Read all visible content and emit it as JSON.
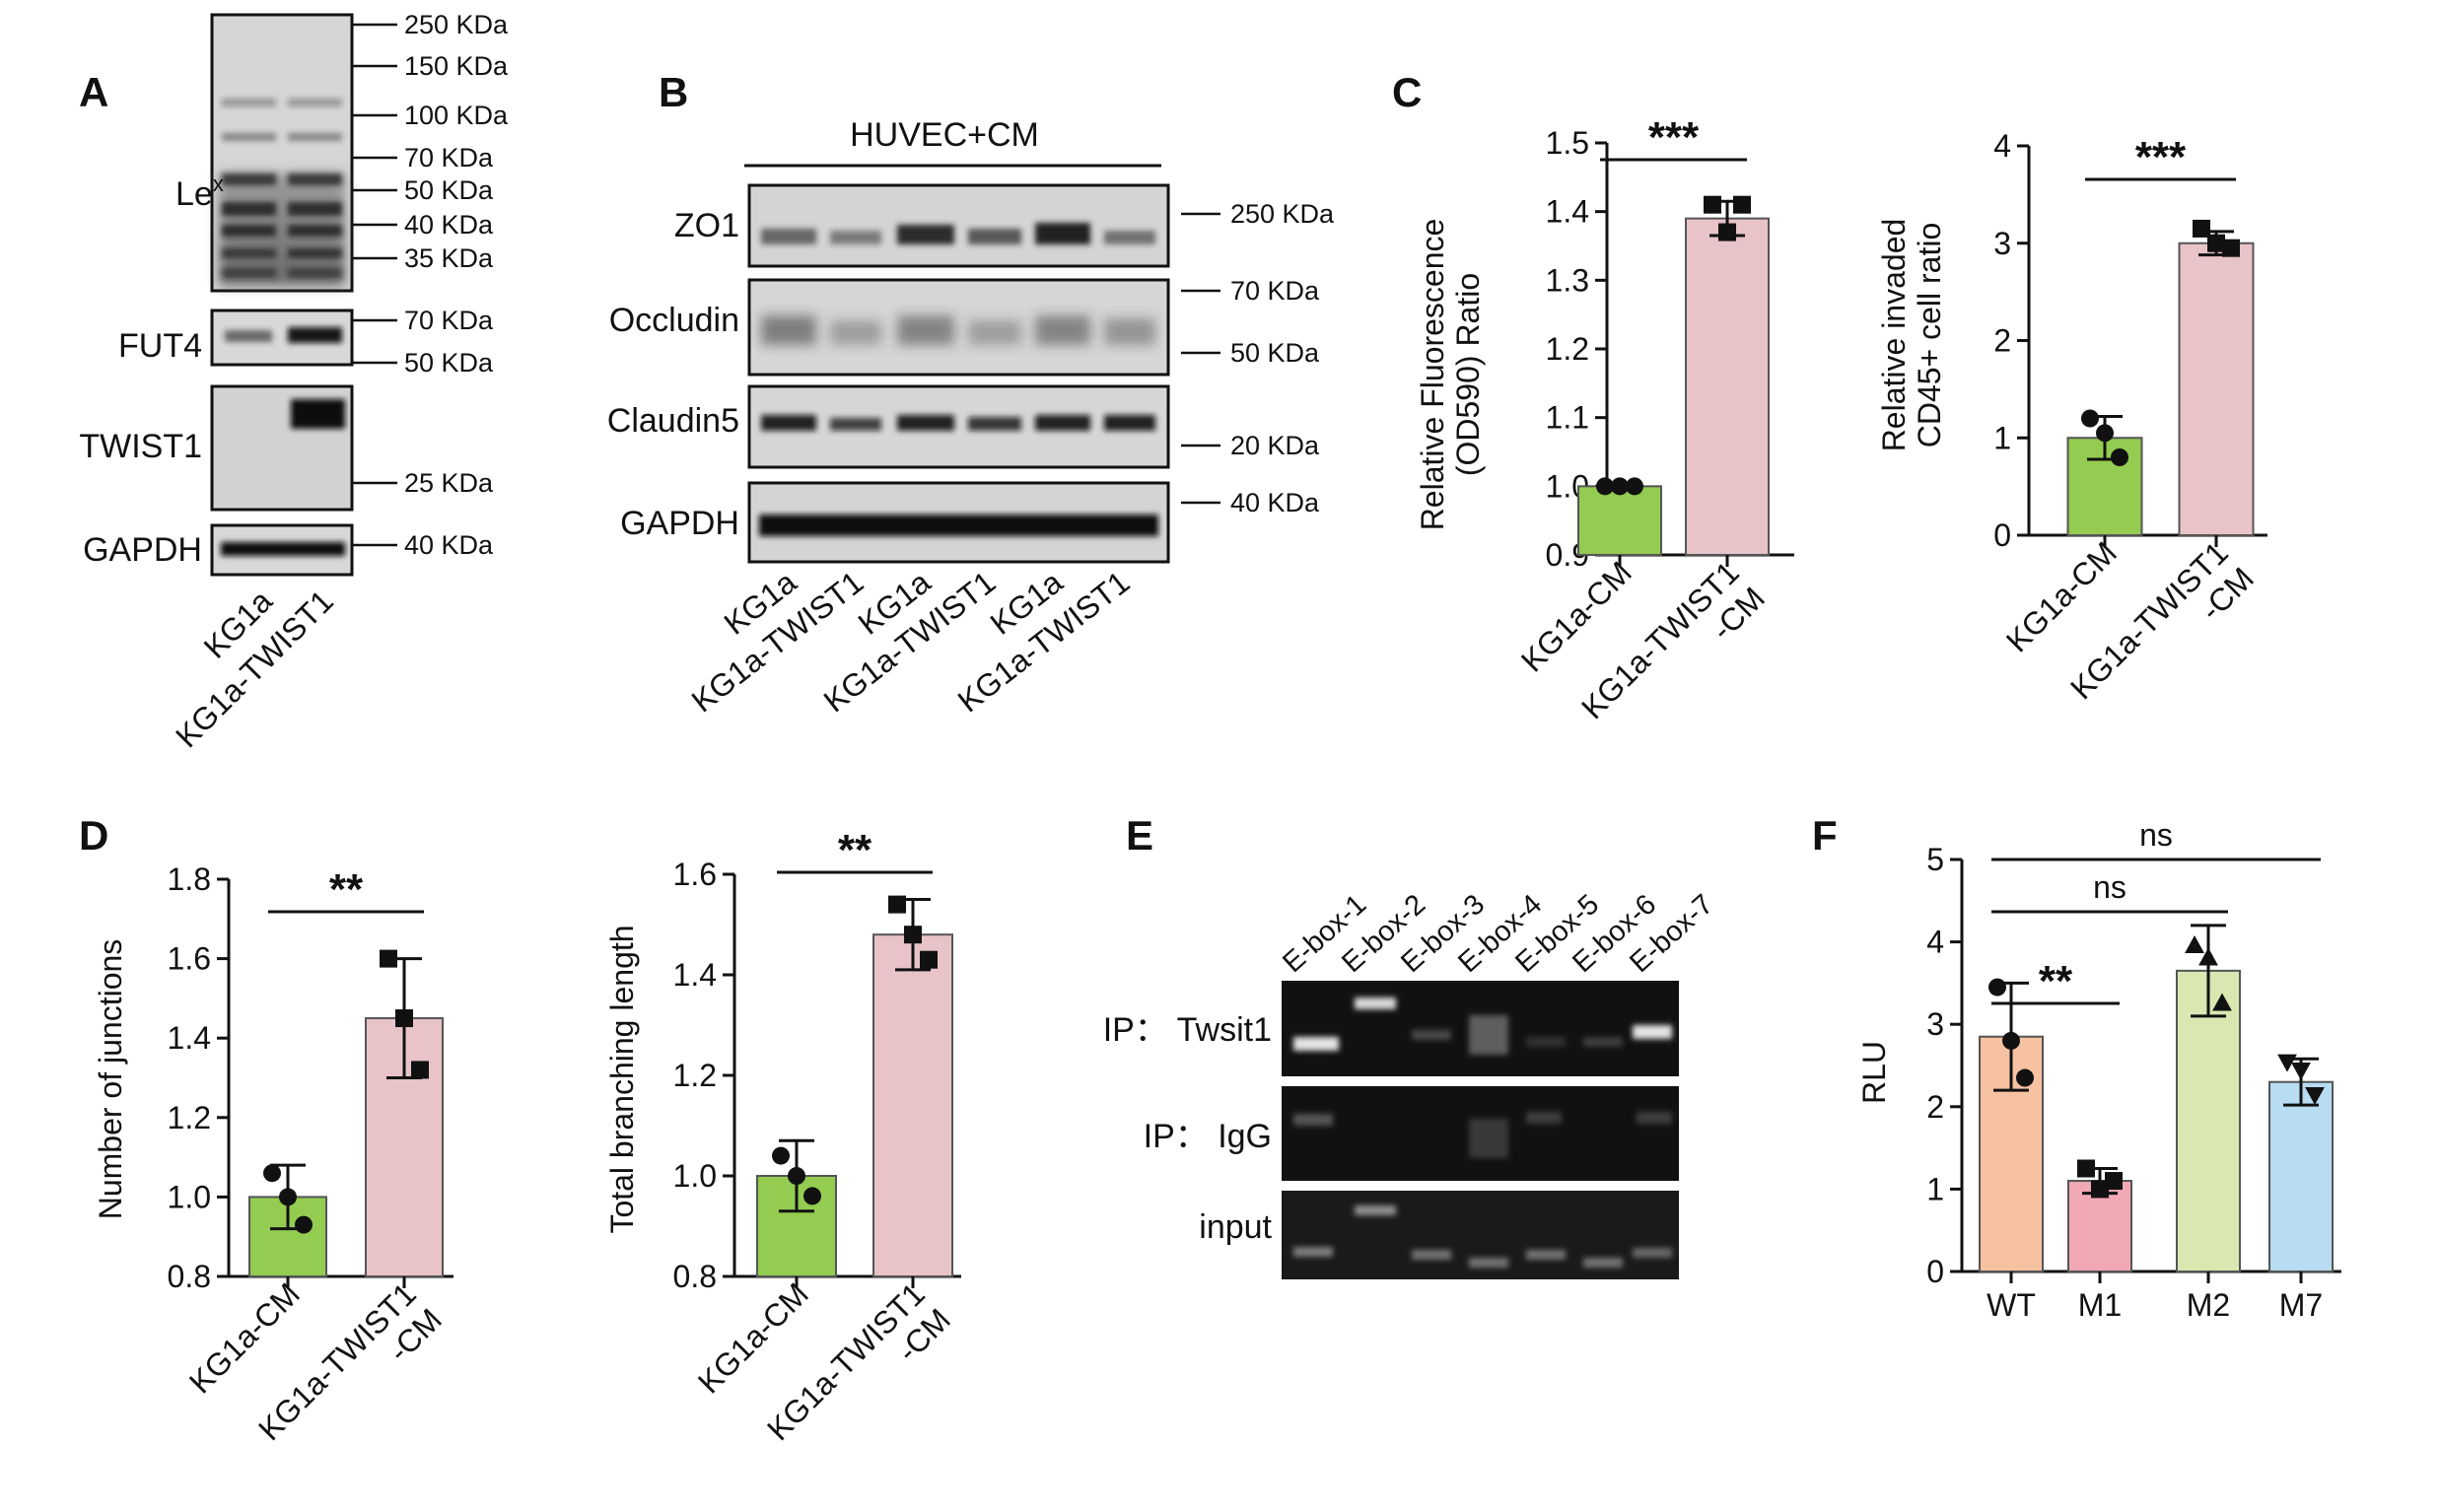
{
  "panels": {
    "A": {
      "letter": "A",
      "rows": [
        "Le<sup>x</sup>",
        "FUT4",
        "TWIST1",
        "GAPDH"
      ],
      "lex_main": "Le",
      "lex_sup": "x",
      "mw_markers": [
        "250 KDa",
        "150 KDa",
        "100 KDa",
        "70 KDa",
        "50 KDa",
        "40 KDa",
        "35 KDa",
        "70 KDa",
        "50 KDa",
        "25 KDa",
        "40 KDa"
      ],
      "lanes": [
        "KG1a",
        "KG1a-TWIST1"
      ]
    },
    "B": {
      "letter": "B",
      "header": "HUVEC+CM",
      "rows": [
        "ZO1",
        "Occludin",
        "Claudin5",
        "GAPDH"
      ],
      "mw_markers": [
        "250 KDa",
        "70 KDa",
        "50 KDa",
        "20 KDa",
        "40 KDa"
      ],
      "lanes": [
        "KG1a",
        "KG1a-TWIST1",
        "KG1a",
        "KG1a-TWIST1",
        "KG1a",
        "KG1a-TWIST1"
      ]
    },
    "C": {
      "letter": "C"
    },
    "D": {
      "letter": "D"
    },
    "E": {
      "letter": "E",
      "lanes": [
        "E-box-1",
        "E-box-2",
        "E-box-3",
        "E-box-4",
        "E-box-5",
        "E-box-6",
        "E-box-7"
      ],
      "rows": [
        "IP： Twsit1",
        "IP： IgG",
        "input"
      ]
    },
    "F": {
      "letter": "F"
    }
  },
  "colors": {
    "green": "#93cc50",
    "pink": "#e8c3c8",
    "peach": "#f6c2a1",
    "rose": "#f0a8b4",
    "lightgreen": "#d8e8b0",
    "lightblue": "#b8dcf2"
  },
  "chart_data": [
    {
      "id": "C1",
      "type": "bar",
      "ylabel": "Relative Fluorescence (OD590) Ratio",
      "ylabel_lines": [
        "Relative Fluorescence",
        "(OD590) Ratio"
      ],
      "ylim": [
        0.9,
        1.5
      ],
      "yticks": [
        "0.9",
        "1.0",
        "1.1",
        "1.2",
        "1.3",
        "1.4",
        "1.5"
      ],
      "categories": [
        "KG1a-CM",
        "KG1a-TWIST1 -CM"
      ],
      "category_lines": [
        [
          "KG1a-CM"
        ],
        [
          "KG1a-TWIST1",
          "-CM"
        ]
      ],
      "values": [
        1.0,
        1.39
      ],
      "errors": [
        0.0,
        0.025
      ],
      "points": [
        [
          1.0,
          1.0,
          1.0
        ],
        [
          1.41,
          1.37,
          1.41
        ]
      ],
      "markers": [
        "circle",
        "square"
      ],
      "colors": [
        "#93cc50",
        "#e8c3c8"
      ],
      "significance": [
        {
          "pair": [
            0,
            1
          ],
          "label": "***"
        }
      ]
    },
    {
      "id": "C2",
      "type": "bar",
      "ylabel": "Relative invaded CD45+ cell ratio",
      "ylabel_lines": [
        "Relative invaded",
        "CD45+ cell ratio"
      ],
      "ylim": [
        0,
        4
      ],
      "yticks": [
        "0",
        "1",
        "2",
        "3",
        "4"
      ],
      "categories": [
        "KG1a-CM",
        "KG1a-TWIST1 -CM"
      ],
      "category_lines": [
        [
          "KG1a-CM"
        ],
        [
          "KG1a-TWIST1",
          "-CM"
        ]
      ],
      "values": [
        1.0,
        3.0
      ],
      "errors": [
        0.22,
        0.12
      ],
      "points": [
        [
          1.2,
          1.05,
          0.8
        ],
        [
          3.15,
          3.0,
          2.95
        ]
      ],
      "markers": [
        "circle",
        "square"
      ],
      "colors": [
        "#93cc50",
        "#e8c3c8"
      ],
      "significance": [
        {
          "pair": [
            0,
            1
          ],
          "label": "***"
        }
      ]
    },
    {
      "id": "D1",
      "type": "bar",
      "ylabel": "Number of junctions",
      "ylabel_lines": [
        "Number of junctions"
      ],
      "ylim": [
        0.8,
        1.8
      ],
      "yticks": [
        "0.8",
        "1.0",
        "1.2",
        "1.4",
        "1.6",
        "1.8"
      ],
      "categories": [
        "KG1a-CM",
        "KG1a-TWIST1 -CM"
      ],
      "category_lines": [
        [
          "KG1a-CM"
        ],
        [
          "KG1a-TWIST1",
          "-CM"
        ]
      ],
      "values": [
        1.0,
        1.45
      ],
      "errors": [
        0.08,
        0.15
      ],
      "points": [
        [
          1.06,
          1.0,
          0.93
        ],
        [
          1.6,
          1.45,
          1.32
        ]
      ],
      "markers": [
        "circle",
        "square"
      ],
      "colors": [
        "#93cc50",
        "#e8c3c8"
      ],
      "significance": [
        {
          "pair": [
            0,
            1
          ],
          "label": "**"
        }
      ]
    },
    {
      "id": "D2",
      "type": "bar",
      "ylabel": "Total branching length",
      "ylabel_lines": [
        "Total branching length"
      ],
      "ylim": [
        0.8,
        1.6
      ],
      "yticks": [
        "0.8",
        "1.0",
        "1.2",
        "1.4",
        "1.6"
      ],
      "categories": [
        "KG1a-CM",
        "KG1a-TWIST1 -CM"
      ],
      "category_lines": [
        [
          "KG1a-CM"
        ],
        [
          "KG1a-TWIST1",
          "-CM"
        ]
      ],
      "values": [
        1.0,
        1.48
      ],
      "errors": [
        0.07,
        0.07
      ],
      "points": [
        [
          1.04,
          1.0,
          0.96
        ],
        [
          1.54,
          1.48,
          1.43
        ]
      ],
      "markers": [
        "circle",
        "square"
      ],
      "colors": [
        "#93cc50",
        "#e8c3c8"
      ],
      "significance": [
        {
          "pair": [
            0,
            1
          ],
          "label": "**"
        }
      ]
    },
    {
      "id": "F",
      "type": "bar",
      "ylabel": "RLU",
      "ylabel_lines": [
        "RLU"
      ],
      "ylim": [
        0,
        5
      ],
      "yticks": [
        "0",
        "1",
        "2",
        "3",
        "4",
        "5"
      ],
      "categories": [
        "WT",
        "M1",
        "M2",
        "M7"
      ],
      "category_lines": [
        [
          "WT"
        ],
        [
          "M1"
        ],
        [
          "M2"
        ],
        [
          "M7"
        ]
      ],
      "values": [
        2.85,
        1.1,
        3.65,
        2.3
      ],
      "errors": [
        0.65,
        0.15,
        0.55,
        0.28
      ],
      "points": [
        [
          3.45,
          2.8,
          2.35
        ],
        [
          1.25,
          1.0,
          1.1
        ],
        [
          3.95,
          3.8,
          3.25
        ],
        [
          2.55,
          2.45,
          2.15
        ]
      ],
      "markers": [
        "circle",
        "square",
        "triangle-up",
        "triangle-down"
      ],
      "colors": [
        "#f6c2a1",
        "#f0a8b4",
        "#d8e8b0",
        "#b8dcf2"
      ],
      "significance": [
        {
          "pair": [
            0,
            1
          ],
          "label": "**"
        },
        {
          "pair": [
            0,
            2
          ],
          "label": "ns"
        },
        {
          "pair": [
            0,
            3
          ],
          "label": "ns"
        }
      ]
    }
  ]
}
